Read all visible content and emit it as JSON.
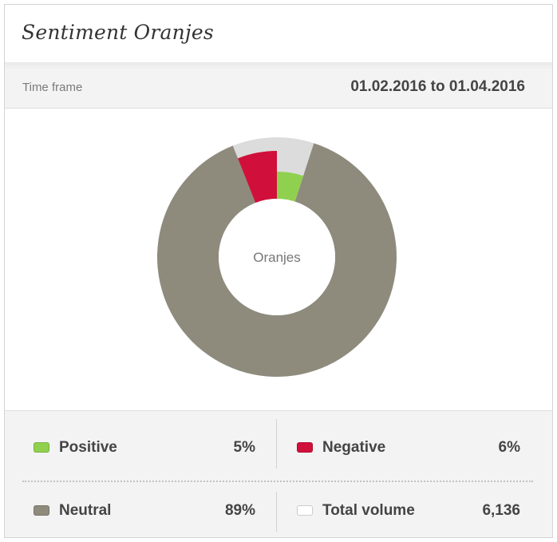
{
  "card": {
    "title": "Sentiment Oranjes"
  },
  "timeframe": {
    "label": "Time frame",
    "range": "01.02.2016 to 01.04.2016"
  },
  "chart_data": {
    "type": "pie",
    "title": "Sentiment Oranjes",
    "center_label": "Oranjes",
    "categories": [
      "Positive",
      "Negative",
      "Neutral"
    ],
    "values": [
      5,
      6,
      89
    ],
    "unit": "%",
    "colors": {
      "Positive": "#8fd14f",
      "Negative": "#d0103a",
      "Neutral": "#8e8b7d"
    },
    "outer_ring_color": "#dcdcdc",
    "note": "Outer light-gray ring sits behind Positive/Negative slices, which are drawn at reduced radius"
  },
  "legend": {
    "items": [
      {
        "key": "positive",
        "label": "Positive",
        "value": "5%",
        "color": "#8fd14f"
      },
      {
        "key": "negative",
        "label": "Negative",
        "value": "6%",
        "color": "#d0103a"
      },
      {
        "key": "neutral",
        "label": "Neutral",
        "value": "89%",
        "color": "#8e8b7d"
      },
      {
        "key": "total",
        "label": "Total volume",
        "value": "6,136",
        "color": "#ffffff"
      }
    ]
  }
}
